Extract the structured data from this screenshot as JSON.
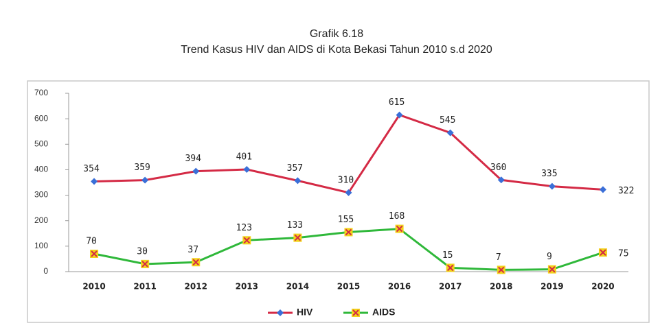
{
  "chart_data": {
    "type": "line",
    "title": "Grafik 6.18",
    "subtitle": "Trend Kasus HIV dan AIDS di Kota Bekasi Tahun 2010 s.d 2020",
    "categories": [
      "2010",
      "2011",
      "2012",
      "2013",
      "2014",
      "2015",
      "2016",
      "2017",
      "2018",
      "2019",
      "2020"
    ],
    "series": [
      {
        "name": "HIV",
        "color": "#d42a45",
        "marker_color": "#3a6fd8",
        "values": [
          354,
          359,
          394,
          401,
          357,
          310,
          615,
          545,
          360,
          335,
          322
        ]
      },
      {
        "name": "AIDS",
        "color": "#2fb83a",
        "marker_color": "#f2d21a",
        "values": [
          70,
          30,
          37,
          123,
          133,
          155,
          168,
          15,
          7,
          9,
          75
        ]
      }
    ],
    "ylim": [
      0,
      700
    ],
    "yticks": [
      0,
      100,
      200,
      300,
      400,
      500,
      600,
      700
    ],
    "grid": false,
    "legend": "bottom"
  }
}
